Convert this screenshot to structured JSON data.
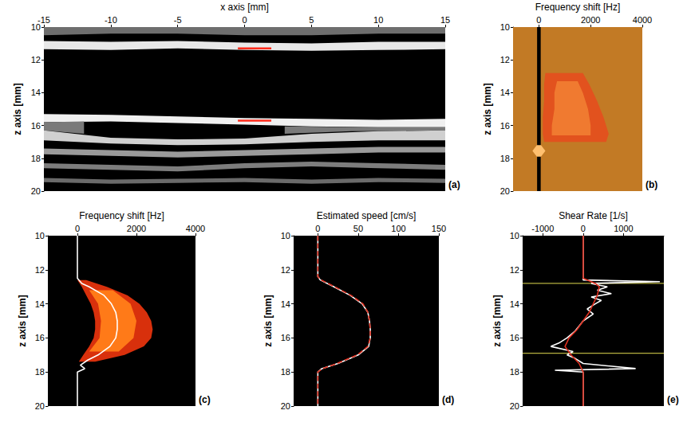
{
  "chart_data": [
    {
      "type": "bands",
      "label": "(a)",
      "x_label": "x axis [mm]",
      "y_label": "z axis [mm]",
      "xlim": [
        -15,
        15
      ],
      "xticks": [
        -15,
        -10,
        -5,
        0,
        5,
        10,
        15
      ],
      "ylim": [
        10,
        20
      ],
      "yticks": [
        10,
        12,
        14,
        16,
        18,
        20
      ],
      "grid": false,
      "bands": [
        {
          "color": "#6e6e6e",
          "x": [
            -15,
            -10,
            -5,
            0,
            5,
            10,
            15
          ],
          "z_top": [
            10,
            10,
            10,
            10,
            10,
            10,
            10
          ],
          "z_bottom": [
            10.5,
            10.4,
            10.4,
            10.5,
            10.5,
            10.4,
            10.4
          ]
        },
        {
          "color": "#e8e8e8",
          "x": [
            -15,
            -10,
            -5,
            0,
            5,
            10,
            15
          ],
          "z_top": [
            10.85,
            10.9,
            10.85,
            10.95,
            11.0,
            10.9,
            10.9
          ],
          "z_bottom": [
            11.35,
            11.4,
            11.3,
            11.4,
            11.45,
            11.4,
            11.35
          ]
        },
        {
          "color": "#f0f0f0",
          "x": [
            -15,
            -10,
            -5,
            0,
            5,
            10,
            15
          ],
          "z_top": [
            15.3,
            15.35,
            15.45,
            15.55,
            15.6,
            15.65,
            15.6
          ],
          "z_bottom": [
            15.8,
            15.75,
            15.85,
            15.95,
            16.05,
            16.1,
            16.1
          ]
        },
        {
          "color": "#7a7a7a",
          "x": [
            3,
            8,
            15
          ],
          "z_top": [
            16.05,
            16.1,
            16.1
          ],
          "z_bottom": [
            16.5,
            16.35,
            16.3
          ]
        },
        {
          "color": "#7a7a7a",
          "x": [
            -15,
            -12
          ],
          "z_top": [
            15.8,
            15.75
          ],
          "z_bottom": [
            16.3,
            16.5
          ]
        },
        {
          "color": "#d0d0d0",
          "x": [
            -15,
            -10,
            -5,
            0,
            5,
            10,
            15
          ],
          "z_top": [
            16.3,
            16.75,
            16.85,
            16.8,
            16.5,
            16.35,
            16.3
          ],
          "z_bottom": [
            16.9,
            17.1,
            17.2,
            17.15,
            17.0,
            16.9,
            16.9
          ]
        },
        {
          "color": "#9a9a9a",
          "x": [
            -15,
            -10,
            -5,
            0,
            5,
            10,
            15
          ],
          "z_top": [
            17.4,
            17.5,
            17.6,
            17.5,
            17.4,
            17.3,
            17.3
          ],
          "z_bottom": [
            17.75,
            17.85,
            17.95,
            17.85,
            17.75,
            17.65,
            17.65
          ]
        },
        {
          "color": "#7d7d7d",
          "x": [
            -15,
            -10,
            -5,
            0,
            5,
            10,
            15
          ],
          "z_top": [
            18.3,
            18.4,
            18.5,
            18.3,
            18.2,
            18.3,
            18.4
          ],
          "z_bottom": [
            18.6,
            18.7,
            18.8,
            18.6,
            18.5,
            18.6,
            18.7
          ]
        },
        {
          "color": "#6a6a6a",
          "x": [
            -15,
            -10,
            -5,
            0,
            5,
            10,
            15
          ],
          "z_top": [
            19.2,
            19.3,
            19.25,
            19.2,
            19.3,
            19.2,
            19.25
          ],
          "z_bottom": [
            19.45,
            19.55,
            19.5,
            19.45,
            19.55,
            19.45,
            19.5
          ]
        }
      ],
      "series": [
        {
          "color": "#ff2a1a",
          "line_style": "solid",
          "x": [
            -0.5,
            2
          ],
          "z": [
            11.3,
            11.3
          ]
        },
        {
          "color": "#ff2a1a",
          "line_style": "solid",
          "x": [
            -0.5,
            2
          ],
          "z": [
            15.7,
            15.7
          ]
        }
      ]
    },
    {
      "type": "spectrum",
      "label": "(b)",
      "x_label": "Frequency shift [Hz]",
      "y_label": "z axis [mm]",
      "xlim": [
        -1000,
        4000
      ],
      "xticks": [
        0,
        2000,
        4000
      ],
      "ylim": [
        10,
        20
      ],
      "yticks": [
        10,
        12,
        14,
        16,
        18,
        20
      ],
      "grid": false,
      "bands": [
        {
          "color": "#c27a25",
          "z": [
            10,
            20
          ],
          "low": [
            -1000,
            -1000
          ],
          "high": [
            4000,
            4000
          ]
        },
        {
          "color": "#000000",
          "z": [
            10,
            20
          ],
          "low": [
            -70,
            -70
          ],
          "high": [
            70,
            70
          ]
        },
        {
          "color": "#e2521e",
          "z": [
            12.8,
            13.5,
            14.5,
            15.5,
            16.5,
            17.0
          ],
          "low": [
            250,
            200,
            200,
            150,
            150,
            200
          ],
          "high": [
            1700,
            1950,
            2250,
            2500,
            2700,
            2600
          ]
        },
        {
          "color": "#f07a30",
          "z": [
            13.3,
            14,
            15,
            16,
            16.6
          ],
          "low": [
            700,
            600,
            600,
            500,
            500
          ],
          "high": [
            1500,
            1700,
            1900,
            2000,
            2000
          ]
        },
        {
          "color": "#ffc070",
          "z": [
            17.2,
            17.55,
            17.9
          ],
          "low": [
            -80,
            -250,
            -80
          ],
          "high": [
            80,
            250,
            80
          ]
        }
      ],
      "series": []
    },
    {
      "type": "spectrum",
      "label": "(c)",
      "x_label": "Frequency shift [Hz]",
      "y_label": "z axis [mm]",
      "xlim": [
        -1000,
        4000
      ],
      "xticks": [
        0,
        2000,
        4000
      ],
      "ylim": [
        10,
        20
      ],
      "yticks": [
        10,
        12,
        14,
        16,
        18,
        20
      ],
      "grid": false,
      "bands": [
        {
          "color": "#d8300c",
          "z": [
            12.6,
            13,
            13.5,
            14,
            14.5,
            15,
            15.5,
            16,
            16.5,
            17,
            17.4
          ],
          "low": [
            0,
            150,
            300,
            450,
            550,
            600,
            600,
            550,
            400,
            200,
            50
          ],
          "high": [
            300,
            1000,
            1700,
            2100,
            2350,
            2500,
            2550,
            2500,
            2250,
            1600,
            600
          ]
        },
        {
          "color": "#ff7a18",
          "z": [
            13.2,
            14,
            15,
            16,
            16.8
          ],
          "low": [
            400,
            700,
            800,
            750,
            400
          ],
          "high": [
            1200,
            1800,
            2000,
            1900,
            1400
          ]
        }
      ],
      "series": [
        {
          "color": "#ffffff",
          "line_style": "solid",
          "z": [
            10,
            12.5,
            12.8,
            13,
            13.5,
            14,
            14.5,
            15,
            15.5,
            16,
            16.5,
            17,
            17.3,
            17.6,
            17.8,
            18,
            20
          ],
          "x": [
            0,
            0,
            150,
            400,
            900,
            1150,
            1300,
            1350,
            1350,
            1300,
            1100,
            700,
            350,
            100,
            250,
            0,
            0
          ]
        }
      ]
    },
    {
      "type": "line",
      "label": "(d)",
      "x_label": "Estimated speed [cm/s]",
      "y_label": "z axis [mm]",
      "xlim": [
        -30,
        150
      ],
      "xticks": [
        0,
        50,
        100,
        150
      ],
      "ylim": [
        10,
        20
      ],
      "yticks": [
        10,
        12,
        14,
        16,
        18,
        20
      ],
      "grid": false,
      "series": [
        {
          "color": "#ffffff",
          "line_style": "solid",
          "z": [
            10,
            12.4,
            12.6,
            13,
            13.5,
            14,
            14.5,
            15,
            15.5,
            16,
            16.5,
            17,
            17.5,
            17.8,
            18,
            20
          ],
          "x": [
            0,
            0,
            3,
            20,
            40,
            55,
            62,
            64,
            65,
            65,
            63,
            50,
            25,
            5,
            0,
            0
          ]
        },
        {
          "color": "#e03020",
          "line_style": "dashed",
          "z": [
            10,
            12.4,
            12.6,
            13,
            13.5,
            14,
            14.5,
            15,
            15.5,
            16,
            16.5,
            17,
            17.5,
            17.8,
            18,
            20
          ],
          "x": [
            0,
            0,
            4,
            21,
            41,
            56,
            62,
            64,
            65,
            65,
            62,
            49,
            24,
            6,
            0,
            0
          ]
        }
      ]
    },
    {
      "type": "line",
      "label": "(e)",
      "x_label": "Shear Rate [1/s]",
      "y_label": "z axis [mm]",
      "xlim": [
        -1500,
        2000
      ],
      "xticks": [
        -1000,
        0,
        1000
      ],
      "ylim": [
        10,
        20
      ],
      "yticks": [
        10,
        12,
        14,
        16,
        18,
        20
      ],
      "grid": false,
      "reference_lines": {
        "color": "#b5b040",
        "z": [
          12.8,
          16.9
        ]
      },
      "series": [
        {
          "color": "#ffffff",
          "line_style": "solid",
          "z": [
            10,
            12.6,
            12.7,
            12.8,
            13,
            13.2,
            13.4,
            13.6,
            13.8,
            14,
            14.3,
            14.6,
            15,
            15.3,
            15.6,
            16,
            16.3,
            16.5,
            16.8,
            17,
            17.2,
            17.5,
            17.8,
            17.9,
            18,
            20
          ],
          "x": [
            0,
            0,
            1900,
            200,
            600,
            350,
            700,
            200,
            450,
            300,
            100,
            250,
            0,
            -100,
            -200,
            -400,
            -600,
            -800,
            -250,
            -400,
            -200,
            0,
            1300,
            -700,
            0,
            0
          ]
        },
        {
          "color": "#e03020",
          "line_style": "solid",
          "z": [
            10,
            12.5,
            12.8,
            13,
            13.5,
            14,
            14.5,
            15,
            15.5,
            16,
            16.5,
            17,
            17.5,
            18,
            20
          ],
          "x": [
            0,
            0,
            300,
            400,
            350,
            250,
            150,
            0,
            -150,
            -350,
            -450,
            -300,
            -100,
            0,
            0
          ]
        }
      ]
    }
  ]
}
